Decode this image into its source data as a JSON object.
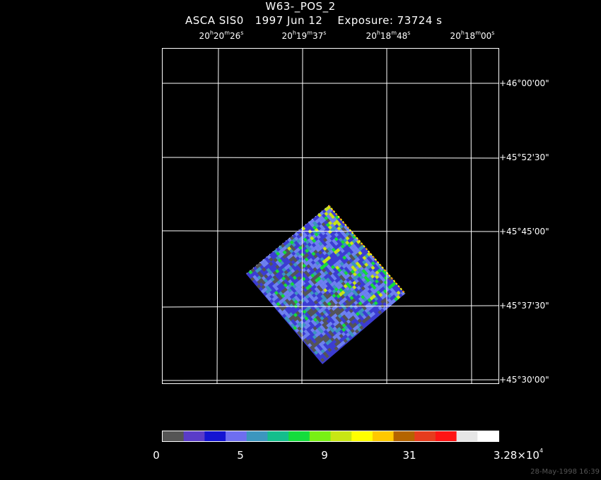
{
  "title": "W63-_POS_2",
  "subtitle": "ASCA SIS0   1997 Jun 12    Exposure: 73724 s",
  "ra_ticks": [
    {
      "h": "20",
      "m": "20",
      "s": "26"
    },
    {
      "h": "20",
      "m": "19",
      "s": "37"
    },
    {
      "h": "20",
      "m": "18",
      "s": "48"
    },
    {
      "h": "20",
      "m": "18",
      "s": "00"
    }
  ],
  "dec_ticks": [
    "+46°00'00\"",
    "+45°52'30\"",
    "+45°45'00\"",
    "+45°37'30\"",
    "+45°30'00\""
  ],
  "colorbar": {
    "colors": [
      "#555555",
      "#5a3cc8",
      "#1414d2",
      "#6e6ef0",
      "#3c96be",
      "#14be8c",
      "#14dc3c",
      "#78f014",
      "#c8e614",
      "#ffff00",
      "#ffc800",
      "#b46400",
      "#e63c1e",
      "#ff1414",
      "#e6e6e6",
      "#ffffff"
    ],
    "labels": [
      {
        "text": "0"
      },
      {
        "text": "5"
      },
      {
        "text": "9"
      },
      {
        "text": "31"
      },
      {
        "text": "3.28×10",
        "sup": "4"
      }
    ]
  },
  "image_colors": {
    "background": "#555555",
    "low": "#3c3cd2",
    "mid": "#6e82f0",
    "high": "#3c96be",
    "peak": "#14dc3c",
    "hot": "#c8e614",
    "edge1": "#ffff00",
    "edge2": "#ff1414",
    "edge3": "#ffffff"
  },
  "timestamp": "28-May-1998 16:39"
}
